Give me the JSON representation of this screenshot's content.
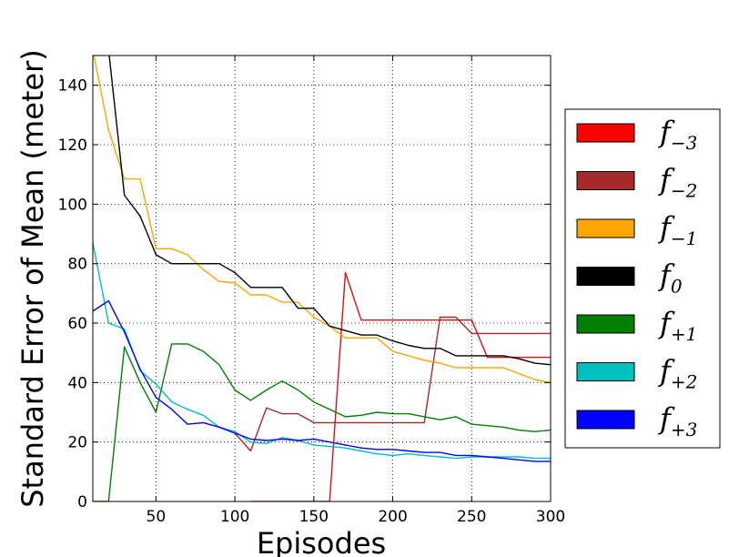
{
  "chart_data": {
    "type": "line",
    "xlabel": "Episodes",
    "ylabel": "Standard Error of Mean (meter)",
    "xlim": [
      10,
      300
    ],
    "ylim": [
      0,
      150
    ],
    "xticks": [
      50,
      100,
      150,
      200,
      250,
      300
    ],
    "yticks": [
      0,
      20,
      40,
      60,
      80,
      100,
      120,
      140
    ],
    "xtick_labels": [
      "50",
      "100",
      "150",
      "200",
      "250",
      "300"
    ],
    "ytick_labels": [
      "0",
      "20",
      "40",
      "60",
      "80",
      "100",
      "120",
      "140"
    ],
    "grid": true,
    "legend_position": "right-outside",
    "series": [
      {
        "name": "f_{-3}",
        "base": "f",
        "sub": "−3",
        "color": "#ff0000",
        "line_color": "#dd1111",
        "x": [
          110,
          120,
          130,
          140,
          150,
          160,
          170,
          180,
          190,
          200,
          210,
          220,
          230,
          240,
          250,
          260,
          270,
          280,
          290,
          300
        ],
        "y": [
          0,
          0,
          0,
          0,
          0,
          0,
          77,
          61,
          61,
          61,
          61,
          61,
          61,
          61,
          61,
          48.5,
          48.5,
          48.5,
          48.5,
          48.5
        ]
      },
      {
        "name": "f_{-2}",
        "base": "f",
        "sub": "−2",
        "color": "#a52a2a",
        "line_color": "#a52a2a",
        "x": [
          100,
          110,
          120,
          130,
          140,
          150,
          160,
          170,
          180,
          190,
          200,
          210,
          220,
          230,
          240,
          250,
          260,
          270,
          280,
          290,
          300
        ],
        "y": [
          23,
          17,
          31.5,
          29.5,
          29.5,
          26.5,
          26.5,
          26.5,
          26.5,
          26.5,
          26.5,
          26.5,
          26.5,
          62,
          62,
          56.5,
          56.5,
          56.5,
          56.5,
          56.5,
          56.5
        ]
      },
      {
        "name": "f_{-1}",
        "base": "f",
        "sub": "−1",
        "color": "#ffa500",
        "line_color": "#ffa500",
        "x": [
          10,
          20,
          30,
          40,
          50,
          60,
          70,
          80,
          90,
          100,
          110,
          120,
          130,
          140,
          150,
          160,
          170,
          180,
          190,
          200,
          210,
          220,
          230,
          240,
          250,
          260,
          270,
          280,
          290,
          300
        ],
        "y": [
          152,
          125,
          108.5,
          108.5,
          85,
          85,
          83,
          78,
          74,
          73.5,
          69.5,
          69.5,
          67,
          67,
          62,
          59,
          55,
          55,
          55,
          50.5,
          49,
          47.5,
          46.5,
          45,
          45,
          45,
          45,
          43,
          41,
          40
        ]
      },
      {
        "name": "f_{0}",
        "base": "f",
        "sub": "0",
        "color": "#000000",
        "line_color": "#000000",
        "x": [
          10,
          20,
          30,
          40,
          50,
          60,
          70,
          80,
          90,
          100,
          110,
          120,
          130,
          140,
          150,
          160,
          170,
          180,
          190,
          200,
          210,
          220,
          230,
          240,
          250,
          260,
          270,
          280,
          290,
          300
        ],
        "y": [
          152,
          152,
          103,
          96,
          83,
          80,
          80,
          80,
          80,
          77,
          72,
          72,
          72,
          65,
          65,
          59,
          57.5,
          56,
          56,
          54,
          52.5,
          51.5,
          51.5,
          49,
          49,
          49,
          49,
          48,
          46.5,
          46
        ]
      },
      {
        "name": "f_{+1}",
        "base": "f",
        "sub": "+1",
        "color": "#008000",
        "line_color": "#008000",
        "x": [
          10,
          20,
          30,
          40,
          50,
          60,
          70,
          80,
          90,
          100,
          110,
          120,
          130,
          140,
          150,
          160,
          170,
          180,
          190,
          200,
          210,
          220,
          230,
          240,
          250,
          260,
          270,
          280,
          290,
          300
        ],
        "y": [
          0,
          0,
          52,
          40,
          30,
          53,
          53,
          50.5,
          46,
          37.5,
          34,
          37.5,
          40.5,
          37.5,
          33.5,
          31,
          28.5,
          29,
          30,
          29.5,
          29.5,
          28.5,
          27.5,
          28.5,
          26,
          25.5,
          25,
          24,
          23.5,
          24
        ]
      },
      {
        "name": "f_{+2}",
        "base": "f",
        "sub": "+2",
        "color": "#00bfbf",
        "line_color": "#00bfbf",
        "x": [
          10,
          20,
          30,
          40,
          50,
          60,
          70,
          80,
          90,
          100,
          110,
          120,
          130,
          140,
          150,
          160,
          170,
          180,
          190,
          200,
          210,
          220,
          230,
          240,
          250,
          260,
          270,
          280,
          290,
          300
        ],
        "y": [
          87,
          60,
          58,
          44,
          39.5,
          33.5,
          31,
          29,
          25,
          23.5,
          20,
          19.5,
          21.5,
          20.5,
          19,
          18.5,
          18,
          17,
          16,
          15.5,
          16,
          15.5,
          15,
          14.5,
          15,
          15,
          15,
          15,
          14.5,
          14.5
        ]
      },
      {
        "name": "f_{+3}",
        "base": "f",
        "sub": "+3",
        "color": "#0000ff",
        "line_color": "#0000ff",
        "x": [
          10,
          20,
          30,
          40,
          50,
          60,
          70,
          80,
          90,
          100,
          110,
          120,
          130,
          140,
          150,
          160,
          170,
          180,
          190,
          200,
          210,
          220,
          230,
          240,
          250,
          260,
          270,
          280,
          290,
          300
        ],
        "y": [
          64,
          67.5,
          57,
          44.5,
          35,
          31,
          26,
          26.5,
          25,
          23,
          21,
          20.5,
          21,
          20.5,
          21,
          20,
          19,
          18,
          17.5,
          17.5,
          17,
          16.5,
          16.5,
          15.5,
          15.5,
          15,
          14.5,
          14,
          13.5,
          13.5
        ]
      }
    ]
  }
}
